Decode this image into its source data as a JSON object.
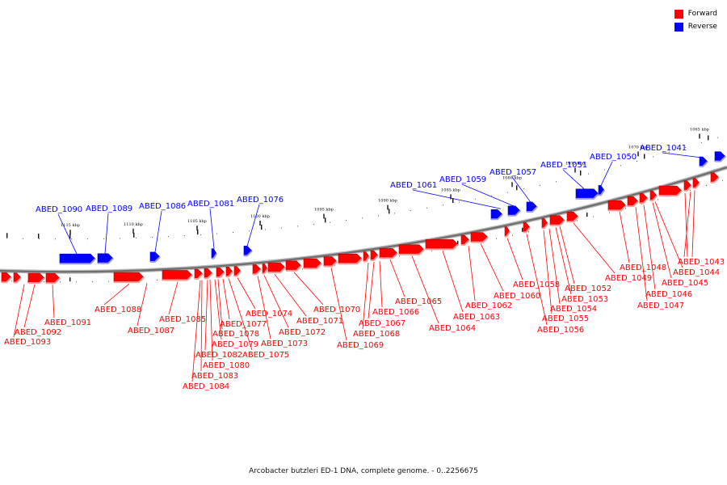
{
  "legend": {
    "forward_label": "Forward",
    "reverse_label": "Reverse",
    "forward_color": "#ff0000",
    "reverse_color": "#0000ff"
  },
  "caption": "Arcobacter butzleri ED-1 DNA, complete genome. - 0..2256675",
  "axis": {
    "ticks": [
      "1115 kbp",
      "1110 kbp",
      "1105 kbp",
      "1100 kbp",
      "1095 kbp",
      "1090 kbp",
      "1085 kbp",
      "1080 kbp",
      "1075 kbp",
      "1070 kbp",
      "1065 kbp"
    ]
  },
  "forward_labels": [
    "ABED_1093",
    "ABED_1092",
    "ABED_1091",
    "ABED_1088",
    "ABED_1087",
    "ABED_1085",
    "ABED_1084",
    "ABED_1083",
    "ABED_1082",
    "ABED_1080",
    "ABED_1079",
    "ABED_1078",
    "ABED_1077",
    "ABED_1075",
    "ABED_1074",
    "ABED_1073",
    "ABED_1072",
    "ABED_1071",
    "ABED_1070",
    "ABED_1069",
    "ABED_1068",
    "ABED_1067",
    "ABED_1066",
    "ABED_1065",
    "ABED_1064",
    "ABED_1063",
    "ABED_1062",
    "ABED_1060",
    "ABED_1058",
    "ABED_1056",
    "ABED_1055",
    "ABED_1054",
    "ABED_1053",
    "ABED_1052",
    "ABED_1049",
    "ABED_1048",
    "ABED_1047",
    "ABED_1046",
    "ABED_1045",
    "ABED_1044",
    "ABED_1043"
  ],
  "reverse_labels": [
    "ABED_1090",
    "ABED_1089",
    "ABED_1086",
    "ABED_1081",
    "ABED_1076",
    "ABED_1061",
    "ABED_1059",
    "ABED_1057",
    "ABED_1051",
    "ABED_1050",
    "ABED_1041"
  ]
}
